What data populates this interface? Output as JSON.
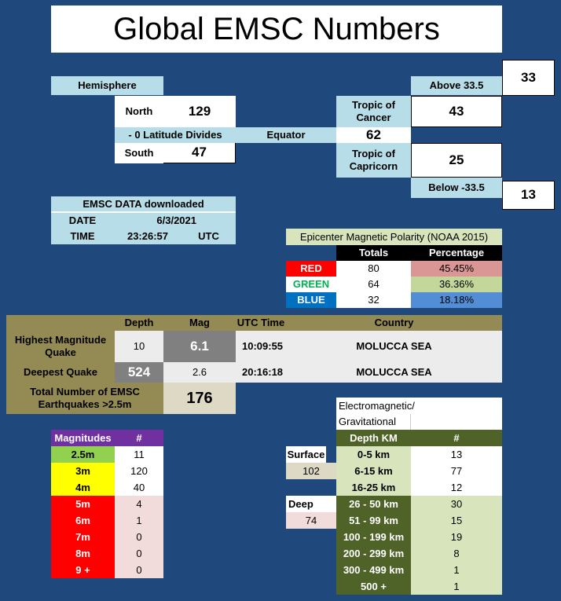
{
  "title": "Global EMSC Numbers",
  "hemisphere": {
    "header": "Hemisphere",
    "north_label": "North",
    "north_value": "129",
    "divides_label": "- 0 Latitude Divides",
    "equator_label": "Equator",
    "equator_value": "62",
    "south_label": "South",
    "south_value": "47",
    "above_label": "Above 33.5",
    "above_value": "33",
    "cancer_label": "Tropic of Cancer",
    "cancer_value": "43",
    "capricorn_label": "Tropic of Capricorn",
    "capricorn_value": "25",
    "below_label": "Below -33.5",
    "below_value": "13"
  },
  "download": {
    "header": "EMSC DATA downloaded",
    "date_label": "DATE",
    "date_value": "6/3/2021",
    "time_label": "TIME",
    "time_value": "23:26:57",
    "tz": "UTC"
  },
  "polarity": {
    "title": "Epicenter Magnetic Polarity (NOAA 2015)",
    "col_totals": "Totals",
    "col_percentage": "Percentage",
    "rows": [
      {
        "label": "RED",
        "total": "80",
        "pct": "45.45%"
      },
      {
        "label": "GREEN",
        "total": "64",
        "pct": "36.36%"
      },
      {
        "label": "BLUE",
        "total": "32",
        "pct": "18.18%"
      }
    ],
    "colors": {
      "red": "#ff0000",
      "green_text": "#00b050",
      "blue": "#0070c0",
      "red_pct": "#da9694",
      "green_pct": "#c4d79b",
      "blue_pct": "#538dd5"
    }
  },
  "quakes": {
    "col_depth": "Depth",
    "col_mag": "Mag",
    "col_utc": "UTC Time",
    "col_country": "Country",
    "highest": {
      "label": "Highest Magnitude Quake",
      "depth": "10",
      "mag": "6.1",
      "utc": "10:09:55",
      "country": "MOLUCCA SEA"
    },
    "deepest": {
      "label": "Deepest Quake",
      "depth": "524",
      "mag": "2.6",
      "utc": "20:16:18",
      "country": "MOLUCCA SEA"
    },
    "total_label": "Total Number of EMSC Earthquakes >2.5m",
    "total_value": "176"
  },
  "magnitudes": {
    "header": "Magnitudes",
    "count_header": "#",
    "rows": [
      {
        "label": "2.5m",
        "count": "11",
        "color": "#92d050",
        "text": "#000000"
      },
      {
        "label": "3m",
        "count": "120",
        "color": "#ffff00",
        "text": "#000000"
      },
      {
        "label": "4m",
        "count": "40",
        "color": "#ffff00",
        "text": "#000000"
      },
      {
        "label": "5m",
        "count": "4",
        "color": "#ff0000",
        "text": "#ffffff"
      },
      {
        "label": "6m",
        "count": "1",
        "color": "#ff0000",
        "text": "#ffffff"
      },
      {
        "label": "7m",
        "count": "0",
        "color": "#ff0000",
        "text": "#ffffff"
      },
      {
        "label": "8m",
        "count": "0",
        "color": "#ff0000",
        "text": "#ffffff"
      },
      {
        "label": "9 +",
        "count": "0",
        "color": "#ff0000",
        "text": "#ffffff"
      }
    ],
    "header_color": "#7030a0"
  },
  "depth": {
    "title_line1": "Electromagnetic/",
    "title_line2": "Gravitational",
    "header": "Depth KM",
    "count_header": "#",
    "surface_label": "Surface",
    "surface_value": "102",
    "deep_label": "Deep",
    "deep_value": "74",
    "rows": [
      {
        "range": "0-5 km",
        "count": "13"
      },
      {
        "range": "6-15 km",
        "count": "77"
      },
      {
        "range": "16-25 km",
        "count": "12"
      },
      {
        "range": "26 - 50 km",
        "count": "30"
      },
      {
        "range": "51 - 99 km",
        "count": "15"
      },
      {
        "range": "100 - 199 km",
        "count": "19"
      },
      {
        "range": "200 - 299 km",
        "count": "8"
      },
      {
        "range": "300 - 499 km",
        "count": "1"
      },
      {
        "range": "500 +",
        "count": "1"
      }
    ]
  }
}
